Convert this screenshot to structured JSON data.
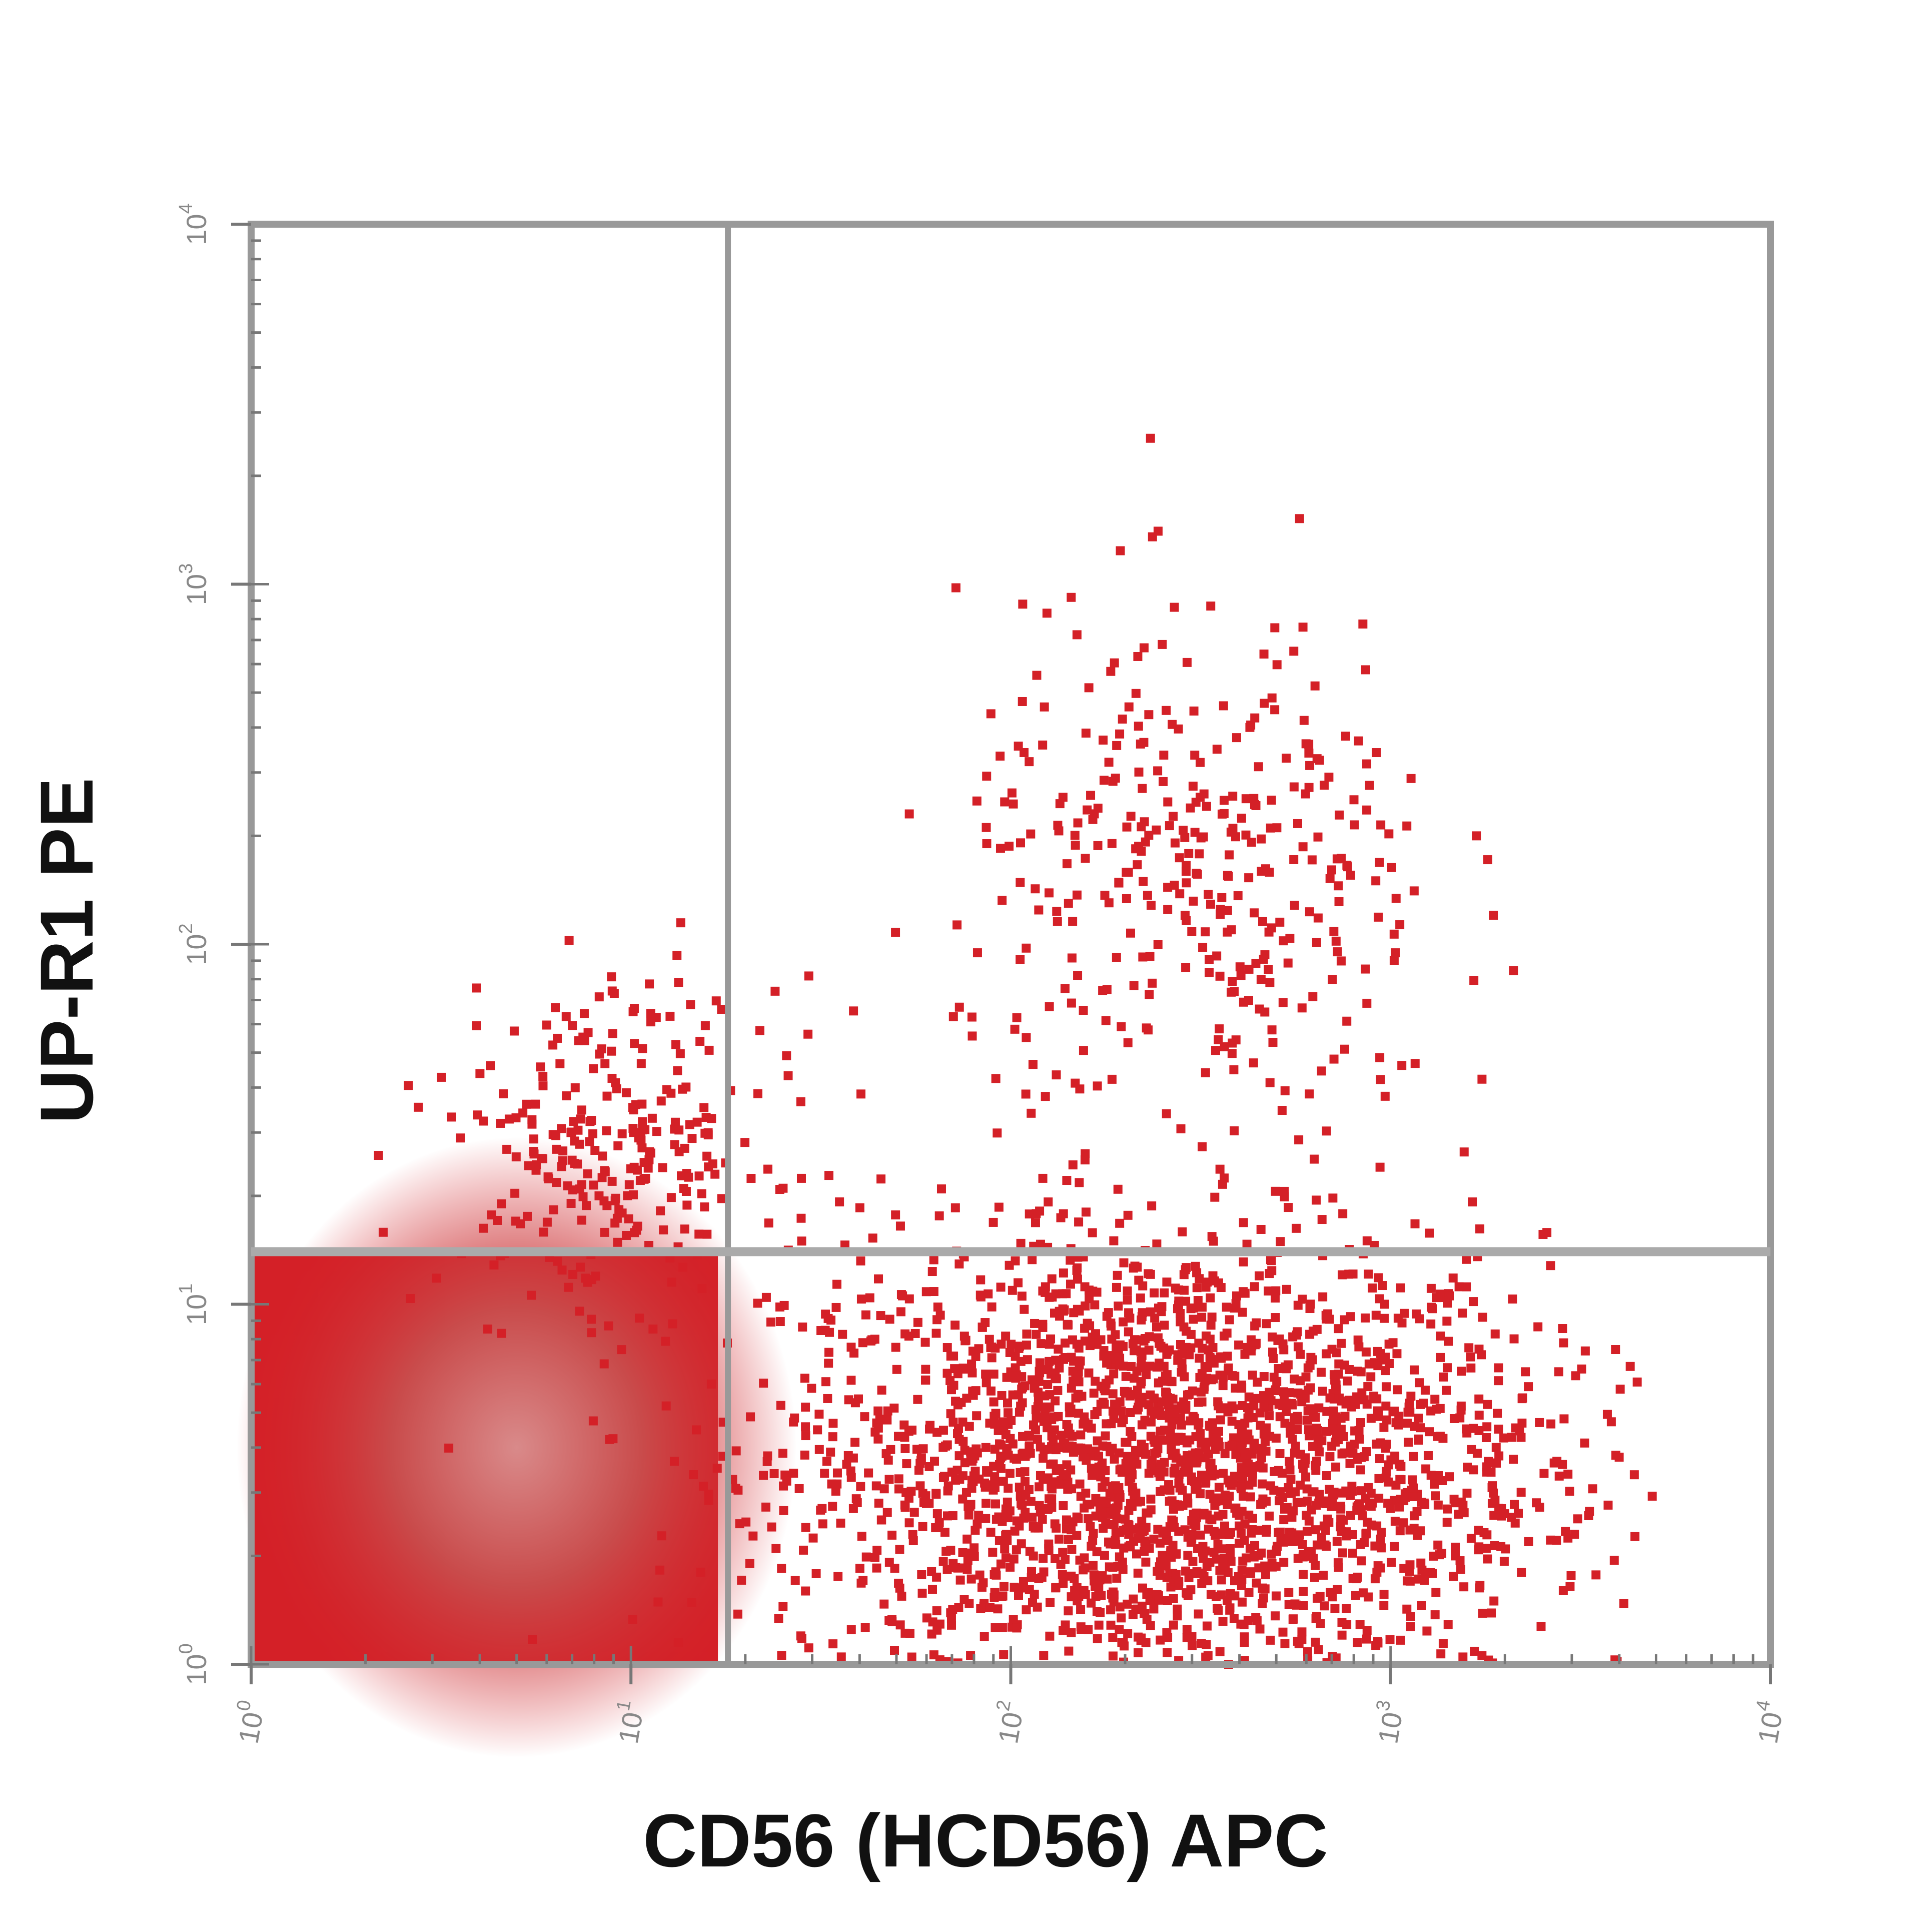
{
  "chart_data": {
    "type": "scatter",
    "title": "",
    "xlabel": "CD56 (HCD56) APC",
    "ylabel": "UP-R1 PE",
    "x_scale": "log",
    "y_scale": "log",
    "xlim": [
      1,
      10000
    ],
    "ylim": [
      1,
      10000
    ],
    "x_ticks": [
      {
        "value": 1,
        "base": "10",
        "exp": "0"
      },
      {
        "value": 10,
        "base": "10",
        "exp": "1"
      },
      {
        "value": 100,
        "base": "10",
        "exp": "2"
      },
      {
        "value": 1000,
        "base": "10",
        "exp": "3"
      },
      {
        "value": 10000,
        "base": "10",
        "exp": "4"
      }
    ],
    "y_ticks": [
      {
        "value": 1,
        "base": "10",
        "exp": "0"
      },
      {
        "value": 10,
        "base": "10",
        "exp": "1"
      },
      {
        "value": 100,
        "base": "10",
        "exp": "2"
      },
      {
        "value": 1000,
        "base": "10",
        "exp": "3"
      },
      {
        "value": 10000,
        "base": "10",
        "exp": "4"
      }
    ],
    "grid": false,
    "legend": "none",
    "quadrant_gate": {
      "x": 18,
      "y": 14
    },
    "colors": {
      "events": "#d42027",
      "dense_core": "#c94b4b",
      "dense_center": "#d98a8a",
      "axes": "#999999"
    },
    "populations": [
      {
        "quadrant": "lower-left",
        "x_range": [
          1,
          18
        ],
        "y_range": [
          1,
          14
        ],
        "density": "saturated",
        "center": [
          5,
          4
        ]
      },
      {
        "quadrant": "lower-right",
        "x_log_mean": 2.4,
        "x_log_sd": 0.5,
        "y_log_mean": 0.55,
        "y_log_sd": 0.32,
        "events": 2600
      },
      {
        "quadrant": "upper-right",
        "x_log_mean": 2.5,
        "x_log_sd": 0.32,
        "y_log_mean": 2.15,
        "y_log_sd": 0.38,
        "events": 380
      },
      {
        "quadrant": "upper-left",
        "x_log_mean": 0.95,
        "x_log_sd": 0.22,
        "y_log_mean": 1.45,
        "y_log_sd": 0.22,
        "events": 280
      }
    ]
  }
}
